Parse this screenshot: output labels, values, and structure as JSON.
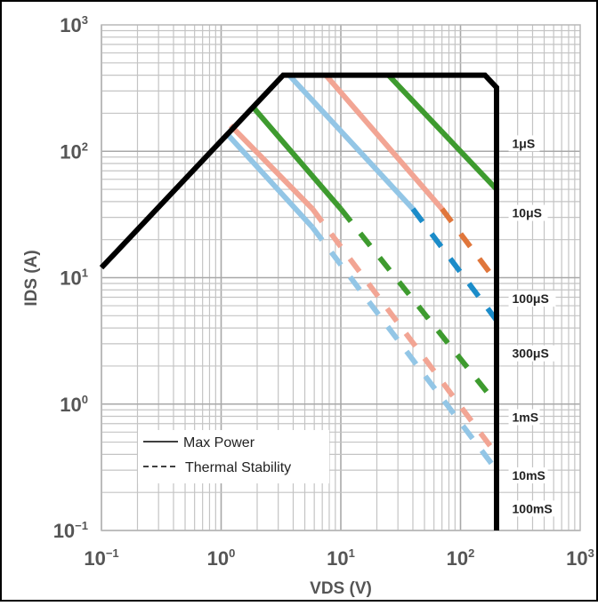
{
  "chart_data": {
    "type": "line",
    "title": "",
    "xlabel": "VDS (V)",
    "ylabel": "IDS (A)",
    "x_scale": "log",
    "y_scale": "log",
    "xlim": [
      0.1,
      1000
    ],
    "ylim": [
      0.1,
      1000
    ],
    "grid": true,
    "x_ticks": [
      {
        "base": "10",
        "exp": "−1",
        "value": 0.1
      },
      {
        "base": "10",
        "exp": "0",
        "value": 1
      },
      {
        "base": "10",
        "exp": "1",
        "value": 10
      },
      {
        "base": "10",
        "exp": "2",
        "value": 100
      },
      {
        "base": "10",
        "exp": "3",
        "value": 1000
      }
    ],
    "y_ticks": [
      {
        "base": "10",
        "exp": "−1",
        "value": 0.1
      },
      {
        "base": "10",
        "exp": "0",
        "value": 1
      },
      {
        "base": "10",
        "exp": "1",
        "value": 10
      },
      {
        "base": "10",
        "exp": "2",
        "value": 100
      },
      {
        "base": "10",
        "exp": "3",
        "value": 1000
      }
    ],
    "legend": {
      "placement": "bottom-left",
      "entries": [
        {
          "label": "Max Power",
          "style": "solid"
        },
        {
          "label": "Thermal Stability",
          "style": "dashed"
        }
      ]
    },
    "boundary": {
      "color": "#000000",
      "points": [
        [
          0.1,
          12
        ],
        [
          3.3,
          400
        ],
        [
          160,
          400
        ],
        [
          200,
          320
        ],
        [
          200,
          0.1
        ]
      ]
    },
    "series": [
      {
        "name": "1μS",
        "color": "#3e9b2f",
        "dark_color": "#3e9b2f",
        "solid": [
          [
            25,
            400
          ],
          [
            200,
            50
          ]
        ],
        "dashed": []
      },
      {
        "name": "10μS",
        "color": "#f2a594",
        "dark_color": "#e0763b",
        "solid": [
          [
            7.5,
            400
          ],
          [
            70,
            35
          ]
        ],
        "dashed": [
          [
            70,
            35
          ],
          [
            200,
            9.3
          ]
        ]
      },
      {
        "name": "100μS",
        "color": "#93c6e6",
        "dark_color": "#1b8cc9",
        "solid": [
          [
            3.7,
            400
          ],
          [
            40,
            35
          ]
        ],
        "dashed": [
          [
            40,
            35
          ],
          [
            200,
            4.6
          ]
        ]
      },
      {
        "name": "300μS",
        "color": "#3e9b2f",
        "dark_color": "#3e9b2f",
        "solid": [
          [
            1.8,
            230
          ],
          [
            10,
            35
          ]
        ],
        "dashed": [
          [
            10,
            35
          ],
          [
            200,
            1.0
          ]
        ]
      },
      {
        "name": "1mS",
        "color": "#f2a594",
        "dark_color": "#f2a594",
        "solid": [
          [
            1.2,
            160
          ],
          [
            5.8,
            35
          ]
        ],
        "dashed": [
          [
            5.8,
            35
          ],
          [
            200,
            0.4
          ]
        ]
      },
      {
        "name": "10mS",
        "color": "#93c6e6",
        "dark_color": "#93c6e6",
        "solid": [
          [
            1.1,
            140
          ],
          [
            5.8,
            25
          ]
        ],
        "dashed": [
          [
            5.8,
            25
          ],
          [
            200,
            0.3
          ]
        ]
      }
    ],
    "annotations": [
      {
        "text": "1μS",
        "at": [
          270,
          110
        ]
      },
      {
        "text": "10μS",
        "at": [
          270,
          31
        ]
      },
      {
        "text": "100μS",
        "at": [
          270,
          6.5
        ]
      },
      {
        "text": "300μS",
        "at": [
          270,
          2.4
        ]
      },
      {
        "text": "1mS",
        "at": [
          270,
          0.75
        ]
      },
      {
        "text": "10mS",
        "at": [
          270,
          0.26
        ]
      },
      {
        "text": "100mS",
        "at": [
          270,
          0.142
        ]
      }
    ]
  }
}
